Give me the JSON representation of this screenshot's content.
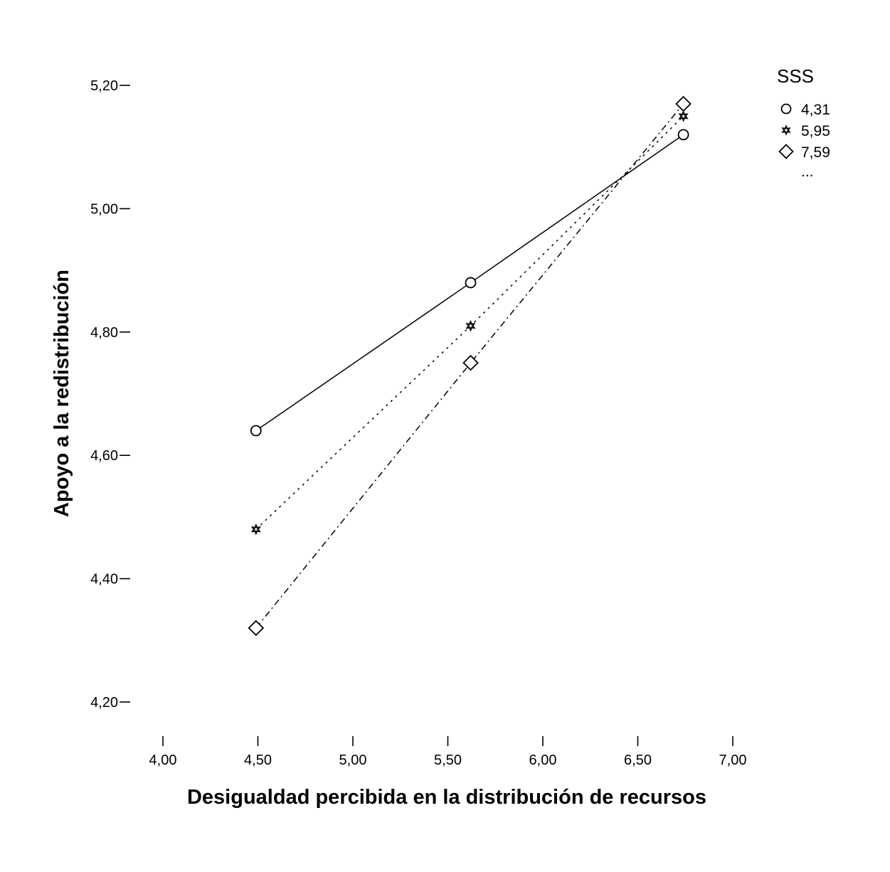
{
  "chart_data": {
    "type": "line",
    "title": "",
    "xlabel": "Desigualdad percibida en la distribución de recursos",
    "ylabel": "Apoyo a la redistribución",
    "xlim": [
      3.6,
      7.2
    ],
    "ylim": [
      4.14,
      5.26
    ],
    "xticks": [
      4.0,
      4.5,
      5.0,
      5.5,
      6.0,
      6.5,
      7.0
    ],
    "xtick_labels": [
      "4,00",
      "4,50",
      "5,00",
      "5,50",
      "6,00",
      "6,50",
      "7,00"
    ],
    "yticks": [
      4.2,
      4.4,
      4.6,
      4.8,
      5.0,
      5.2
    ],
    "ytick_labels": [
      "4,20",
      "4,40",
      "4,60",
      "4,80",
      "5,00",
      "5,20"
    ],
    "grid": false,
    "legend": {
      "title": "SSS",
      "position": "top-right",
      "more": "..."
    },
    "series": [
      {
        "name": "4,31",
        "marker": "circle",
        "line": "solid",
        "x": [
          4.49,
          5.62,
          6.74
        ],
        "y": [
          4.64,
          4.88,
          5.12
        ]
      },
      {
        "name": "5,95",
        "marker": "star",
        "line": "dotted",
        "x": [
          4.49,
          5.62,
          6.74
        ],
        "y": [
          4.48,
          4.81,
          5.15
        ]
      },
      {
        "name": "7,59",
        "marker": "diamond",
        "line": "dashdot",
        "x": [
          4.49,
          5.62,
          6.74
        ],
        "y": [
          4.32,
          4.75,
          5.17
        ]
      }
    ]
  }
}
